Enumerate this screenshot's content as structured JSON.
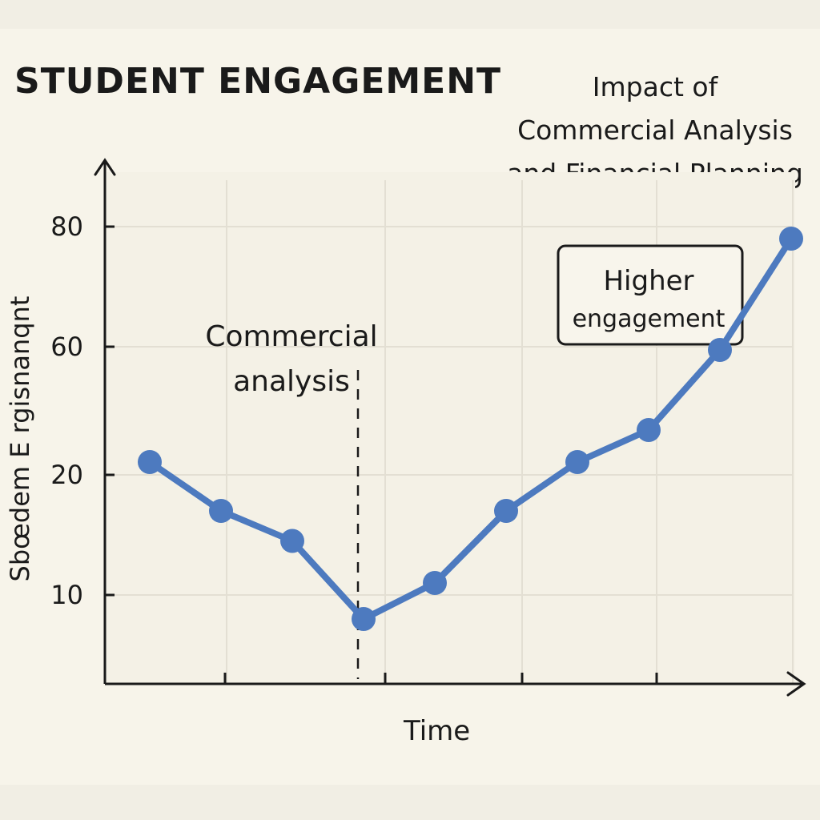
{
  "chart_data": {
    "type": "line",
    "title": "STUDENT ENGAGEMENT",
    "subtitle": [
      "Impact of",
      "Commercial Analysis",
      "and Financial Planning"
    ],
    "xlabel": "Time",
    "ylabel": "Sbœdem E rgisnanqnt",
    "y_ticks": [
      {
        "label": "80",
        "value": 80
      },
      {
        "label": "60",
        "value": 60
      },
      {
        "label": "20",
        "value": 20
      },
      {
        "label": "10",
        "value": 10
      }
    ],
    "x": [
      1,
      2,
      3,
      4,
      5,
      6,
      7,
      8,
      9,
      10
    ],
    "series": [
      {
        "values": [
          24,
          17,
          14.5,
          8,
          11,
          17,
          24,
          34,
          59,
          78
        ]
      }
    ],
    "grid": true,
    "colors": {
      "line": "#4d7abf",
      "marker": "#4d7abf"
    },
    "annotations": [
      {
        "lines": [
          "Commercial",
          "analysis"
        ],
        "x": 4
      },
      {
        "lines": [
          "Higher",
          "engagement"
        ],
        "x": 8.7,
        "boxed": true
      }
    ]
  }
}
